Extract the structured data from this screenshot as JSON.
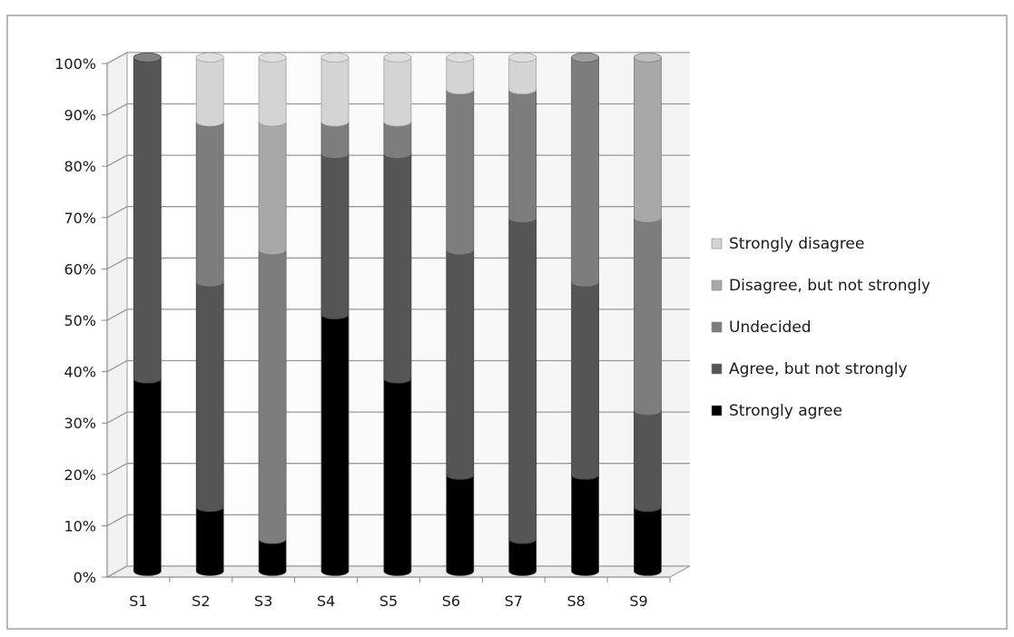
{
  "chart_data": {
    "type": "bar",
    "stacked": "percent",
    "categories": [
      "S1",
      "S2",
      "S3",
      "S4",
      "S5",
      "S6",
      "S7",
      "S8",
      "S9"
    ],
    "series": [
      {
        "name": "Strongly agree",
        "color": "#000000",
        "values": [
          37.5,
          12.5,
          6.25,
          50,
          37.5,
          18.75,
          6.25,
          18.75,
          12.5
        ]
      },
      {
        "name": "Agree, but not strongly",
        "color": "#555555",
        "values": [
          62.5,
          43.75,
          0,
          31.25,
          43.75,
          43.75,
          62.5,
          37.5,
          18.75
        ]
      },
      {
        "name": "Undecided",
        "color": "#7d7d7d",
        "values": [
          0,
          31.25,
          56.25,
          6.25,
          6.25,
          31.25,
          25,
          43.75,
          37.5
        ]
      },
      {
        "name": "Disagree, but not strongly",
        "color": "#a8a8a8",
        "values": [
          0,
          0,
          25,
          0,
          0,
          0,
          0,
          0,
          31.25
        ]
      },
      {
        "name": "Strongly disagree",
        "color": "#d4d4d4",
        "values": [
          0,
          12.5,
          12.5,
          12.5,
          12.5,
          6.25,
          6.25,
          0,
          0
        ]
      }
    ],
    "y_ticks": [
      "0%",
      "10%",
      "20%",
      "30%",
      "40%",
      "50%",
      "60%",
      "70%",
      "80%",
      "90%",
      "100%"
    ],
    "ylim": [
      0,
      100
    ],
    "grid": true,
    "legend_position": "right",
    "style": "3d-cylinder"
  }
}
